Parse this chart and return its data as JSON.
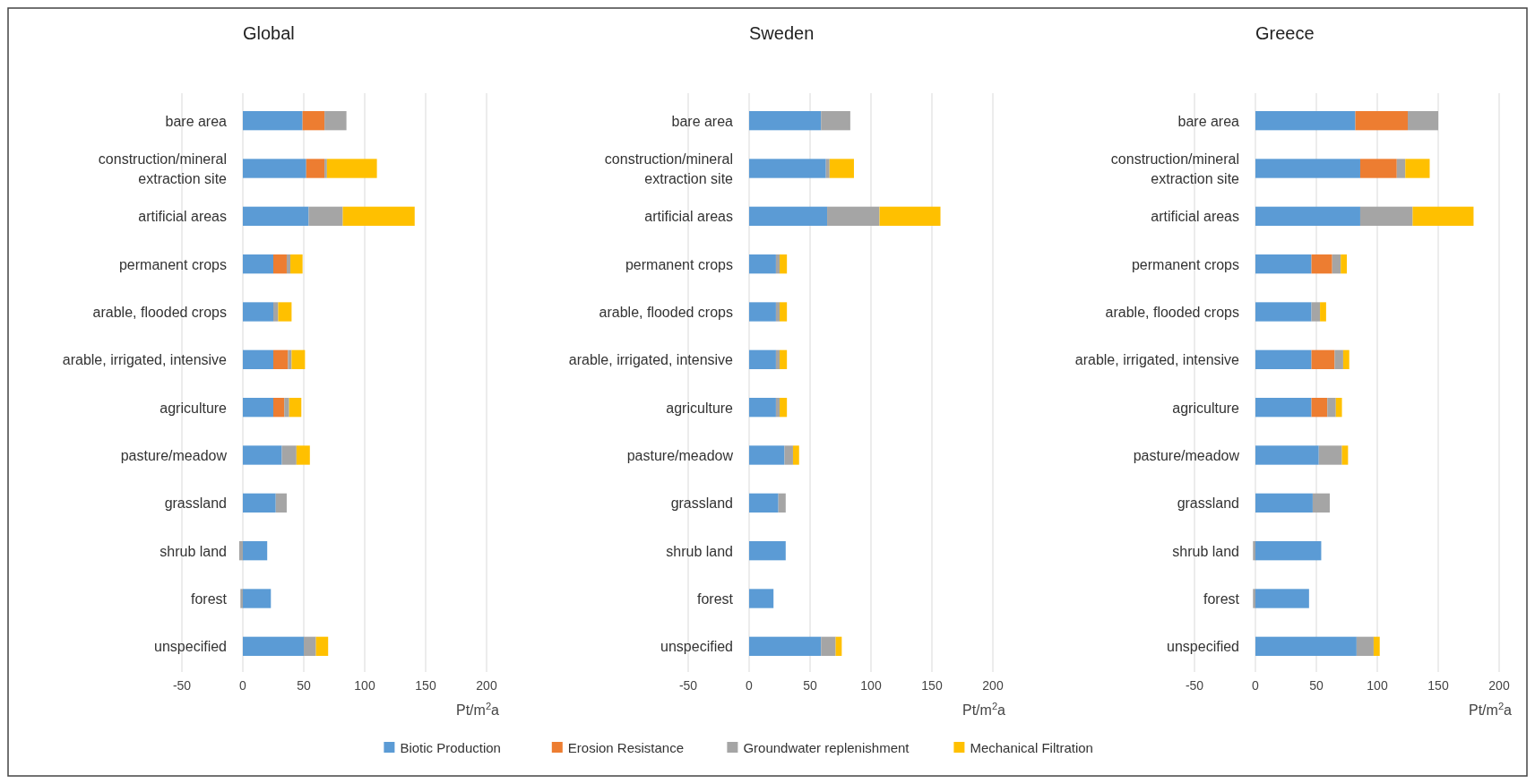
{
  "chart_data": [
    {
      "type": "bar",
      "orientation": "horizontal",
      "stacked": true,
      "title": "Global",
      "xlabel": "Pt/m$^{2}$a",
      "categories": [
        "bare area",
        "construction/mineral extraction site",
        "artificial areas",
        "permanent crops",
        "arable, flooded crops",
        "arable, irrigated, intensive",
        "agriculture",
        "pasture/meadow",
        "grassland",
        "shrub land",
        "forest",
        "unspecified"
      ],
      "xlim": [
        -50,
        200
      ],
      "xticks": [
        -50,
        0,
        50,
        100,
        150,
        200
      ],
      "grid": "x",
      "legend": "bottom",
      "series": [
        {
          "name": "Biotic Production",
          "color": "#5b9bd5",
          "values": [
            49,
            52,
            54,
            25,
            25,
            25,
            25,
            32,
            27,
            20,
            23,
            50
          ]
        },
        {
          "name": "Erosion Resistance",
          "color": "#ed7d31",
          "values": [
            18,
            15,
            0,
            11,
            0,
            12,
            9,
            0,
            0,
            0,
            0,
            0
          ]
        },
        {
          "name": "Groundwater replenishment",
          "color": "#a5a5a5",
          "values": [
            18,
            2,
            28,
            3,
            4,
            3,
            4,
            12,
            9,
            -3,
            -2,
            10
          ]
        },
        {
          "name": "Mechanical Filtration",
          "color": "#ffc000",
          "values": [
            0,
            41,
            59,
            10,
            11,
            11,
            10,
            11,
            0,
            0,
            0,
            10
          ]
        }
      ]
    },
    {
      "type": "bar",
      "orientation": "horizontal",
      "stacked": true,
      "title": "Sweden",
      "xlabel": "Pt/m$^{2}$a",
      "categories": [
        "bare area",
        "construction/mineral extraction site",
        "artificial areas",
        "permanent crops",
        "arable, flooded crops",
        "arable, irrigated, intensive",
        "agriculture",
        "pasture/meadow",
        "grassland",
        "shrub land",
        "forest",
        "unspecified"
      ],
      "xlim": [
        -50,
        200
      ],
      "xticks": [
        -50,
        0,
        50,
        100,
        150,
        200
      ],
      "grid": "x",
      "series": [
        {
          "color": "#5b9bd5",
          "values": [
            59,
            63,
            64,
            22,
            22,
            22,
            22,
            29,
            24,
            30,
            20,
            59
          ]
        },
        {
          "color": "#a5a5a5",
          "values": [
            24,
            3,
            43,
            3,
            3,
            3,
            3,
            7,
            6,
            0,
            0,
            12
          ]
        },
        {
          "color": "#ffc000",
          "values": [
            0,
            20,
            50,
            6,
            6,
            6,
            6,
            5,
            0,
            0,
            0,
            5
          ]
        }
      ]
    },
    {
      "type": "bar",
      "orientation": "horizontal",
      "stacked": true,
      "title": "Greece",
      "xlabel": "Pt/m$^{2}$a",
      "categories": [
        "bare area",
        "construction/mineral extraction site",
        "artificial areas",
        "permanent crops",
        "arable, flooded crops",
        "arable, irrigated, intensive",
        "agriculture",
        "pasture/meadow",
        "grassland",
        "shrub land",
        "forest",
        "unspecified"
      ],
      "xlim": [
        -50,
        200
      ],
      "xticks": [
        -50,
        0,
        50,
        100,
        150,
        200
      ],
      "grid": "x",
      "series": [
        {
          "color": "#5b9bd5",
          "values": [
            82,
            86,
            86,
            46,
            46,
            46,
            46,
            52,
            47,
            54,
            44,
            83
          ]
        },
        {
          "color": "#ed7d31",
          "values": [
            43,
            30,
            0,
            17,
            0,
            19,
            13,
            0,
            0,
            0,
            0,
            0
          ]
        },
        {
          "color": "#a5a5a5",
          "values": [
            25,
            7,
            43,
            7,
            7,
            7,
            7,
            19,
            14,
            -2,
            -2,
            14
          ]
        },
        {
          "color": "#ffc000",
          "values": [
            0,
            20,
            50,
            5,
            5,
            5,
            5,
            5,
            0,
            0,
            0,
            5
          ]
        }
      ]
    }
  ]
}
